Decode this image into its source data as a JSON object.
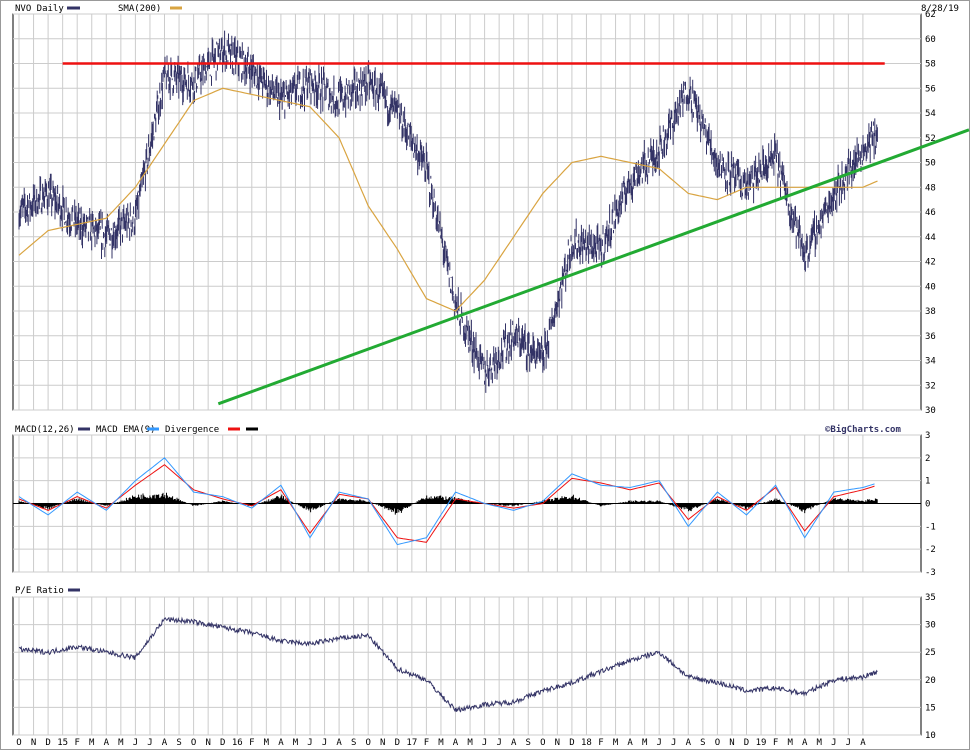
{
  "chart_data": [
    {
      "type": "line",
      "panel": "price",
      "label": "NVO Daily",
      "date": "8/28/19",
      "ylim": [
        30,
        62
      ],
      "yticks": [
        30,
        32,
        34,
        36,
        38,
        40,
        42,
        44,
        46,
        48,
        50,
        52,
        54,
        56,
        58,
        60,
        62
      ],
      "grid": true,
      "legend_placement": "top-left",
      "x_months": [
        "O",
        "N",
        "D",
        "15",
        "F",
        "M",
        "A",
        "M",
        "J",
        "J",
        "A",
        "S",
        "O",
        "N",
        "D",
        "16",
        "F",
        "M",
        "A",
        "M",
        "J",
        "J",
        "A",
        "S",
        "O",
        "N",
        "D",
        "17",
        "F",
        "M",
        "A",
        "M",
        "J",
        "J",
        "A",
        "S",
        "O",
        "N",
        "D",
        "18",
        "F",
        "M",
        "A",
        "M",
        "J",
        "J",
        "A",
        "S",
        "O",
        "N",
        "D",
        "19",
        "F",
        "M",
        "A",
        "M",
        "J",
        "J",
        "A"
      ],
      "series": [
        {
          "name": "",
          "color": "#333366",
          "x": [
            0,
            2,
            4,
            6,
            8,
            10,
            12,
            14,
            16,
            18,
            20,
            22,
            24,
            26,
            28,
            30,
            32,
            34,
            36,
            38,
            40,
            42,
            44,
            46,
            48,
            50,
            52,
            54,
            56,
            58,
            59
          ],
          "y": [
            46.0,
            47.5,
            45.0,
            44.0,
            45.5,
            57.0,
            56.5,
            59.0,
            57.5,
            55.0,
            56.5,
            55.0,
            56.5,
            54.0,
            49.5,
            38.5,
            33.0,
            36.0,
            34.0,
            43.5,
            43.0,
            48.5,
            51.0,
            56.0,
            50.0,
            48.0,
            50.5,
            42.5,
            47.5,
            51.0,
            52.5
          ]
        },
        {
          "name": "SMA(200)",
          "color": "#d9a441",
          "x": [
            0,
            2,
            4,
            6,
            8,
            10,
            12,
            14,
            16,
            18,
            20,
            22,
            24,
            26,
            28,
            30,
            32,
            34,
            36,
            38,
            40,
            42,
            44,
            46,
            48,
            50,
            52,
            54,
            56,
            58,
            59
          ],
          "y": [
            42.5,
            44.5,
            45.0,
            45.5,
            48.0,
            51.5,
            55.0,
            56.0,
            55.5,
            55.0,
            54.5,
            52.0,
            46.5,
            43.0,
            39.0,
            38.0,
            40.5,
            44.0,
            47.5,
            50.0,
            50.5,
            50.0,
            49.5,
            47.5,
            47.0,
            48.0,
            48.0,
            48.0,
            48.0,
            48.0,
            48.5
          ]
        },
        {
          "name": "",
          "color": "#ee1111",
          "x": [
            3,
            59.5
          ],
          "y": [
            58,
            58
          ]
        },
        {
          "name": "",
          "color": "#22aa33",
          "x": [
            13.7,
            60.3
          ],
          "y": [
            30.5,
            50.5
          ]
        }
      ]
    },
    {
      "type": "line",
      "panel": "macd",
      "label": "MACD(12,26)",
      "source": "©BigCharts.com",
      "ylim": [
        -3,
        3
      ],
      "yticks": [
        -3,
        -2,
        -1,
        0,
        1,
        2,
        3
      ],
      "grid": true,
      "series": [
        {
          "name": "MACD EMA(9)",
          "color": "#3399ff",
          "x": [
            0,
            2,
            4,
            6,
            8,
            10,
            12,
            14,
            16,
            18,
            20,
            22,
            24,
            26,
            28,
            30,
            32,
            34,
            36,
            38,
            40,
            42,
            44,
            46,
            48,
            50,
            52,
            54,
            56,
            58,
            59
          ],
          "y": [
            0.3,
            -0.5,
            0.5,
            -0.3,
            1.0,
            2.0,
            0.5,
            0.3,
            -0.2,
            0.8,
            -1.5,
            0.5,
            0.2,
            -1.8,
            -1.5,
            0.5,
            0.0,
            -0.3,
            0.1,
            1.3,
            0.8,
            0.7,
            1.0,
            -1.0,
            0.5,
            -0.5,
            0.8,
            -1.5,
            0.5,
            0.7,
            0.9
          ]
        },
        {
          "name": "Divergence",
          "color": "#ee1111",
          "x": [
            0,
            2,
            4,
            6,
            8,
            10,
            12,
            14,
            16,
            18,
            20,
            22,
            24,
            26,
            28,
            30,
            32,
            34,
            36,
            38,
            40,
            42,
            44,
            46,
            48,
            50,
            52,
            54,
            56,
            58,
            59
          ],
          "y": [
            0.2,
            -0.3,
            0.3,
            -0.2,
            0.8,
            1.7,
            0.6,
            0.2,
            -0.1,
            0.6,
            -1.3,
            0.4,
            0.2,
            -1.5,
            -1.7,
            0.2,
            0.0,
            -0.2,
            0.0,
            1.1,
            0.9,
            0.6,
            0.9,
            -0.7,
            0.3,
            -0.3,
            0.7,
            -1.2,
            0.3,
            0.6,
            0.8
          ]
        },
        {
          "name": "",
          "color": "#000000",
          "x": [
            0,
            2,
            4,
            6,
            8,
            10,
            12,
            14,
            16,
            18,
            20,
            22,
            24,
            26,
            28,
            30,
            32,
            34,
            36,
            38,
            40,
            42,
            44,
            46,
            48,
            50,
            52,
            54,
            56,
            58,
            59
          ],
          "y": [
            0.1,
            -0.2,
            0.2,
            -0.1,
            0.3,
            0.4,
            -0.1,
            0.1,
            -0.1,
            0.3,
            -0.3,
            0.2,
            0.1,
            -0.4,
            0.3,
            0.2,
            0.0,
            -0.1,
            0.1,
            0.3,
            -0.1,
            0.1,
            0.1,
            -0.3,
            0.2,
            -0.2,
            0.2,
            -0.3,
            0.2,
            0.1,
            0.2
          ]
        }
      ]
    },
    {
      "type": "line",
      "panel": "pe",
      "label": "P/E Ratio",
      "ylim": [
        10,
        35
      ],
      "yticks": [
        10,
        15,
        20,
        25,
        30,
        35
      ],
      "grid": true,
      "series": [
        {
          "name": "",
          "color": "#333366",
          "x": [
            0,
            2,
            4,
            6,
            8,
            10,
            12,
            14,
            16,
            18,
            20,
            22,
            24,
            26,
            28,
            30,
            32,
            34,
            36,
            38,
            40,
            42,
            44,
            46,
            48,
            50,
            52,
            54,
            56,
            58,
            59
          ],
          "y": [
            25.5,
            25.0,
            26.0,
            25.0,
            24.0,
            31.0,
            30.5,
            29.5,
            28.5,
            27.0,
            26.5,
            27.5,
            28.0,
            22.0,
            20.0,
            14.5,
            15.5,
            16.0,
            18.0,
            19.5,
            21.5,
            23.5,
            25.0,
            20.5,
            19.5,
            18.0,
            18.5,
            17.5,
            20.0,
            20.5,
            21.5
          ]
        }
      ]
    }
  ]
}
